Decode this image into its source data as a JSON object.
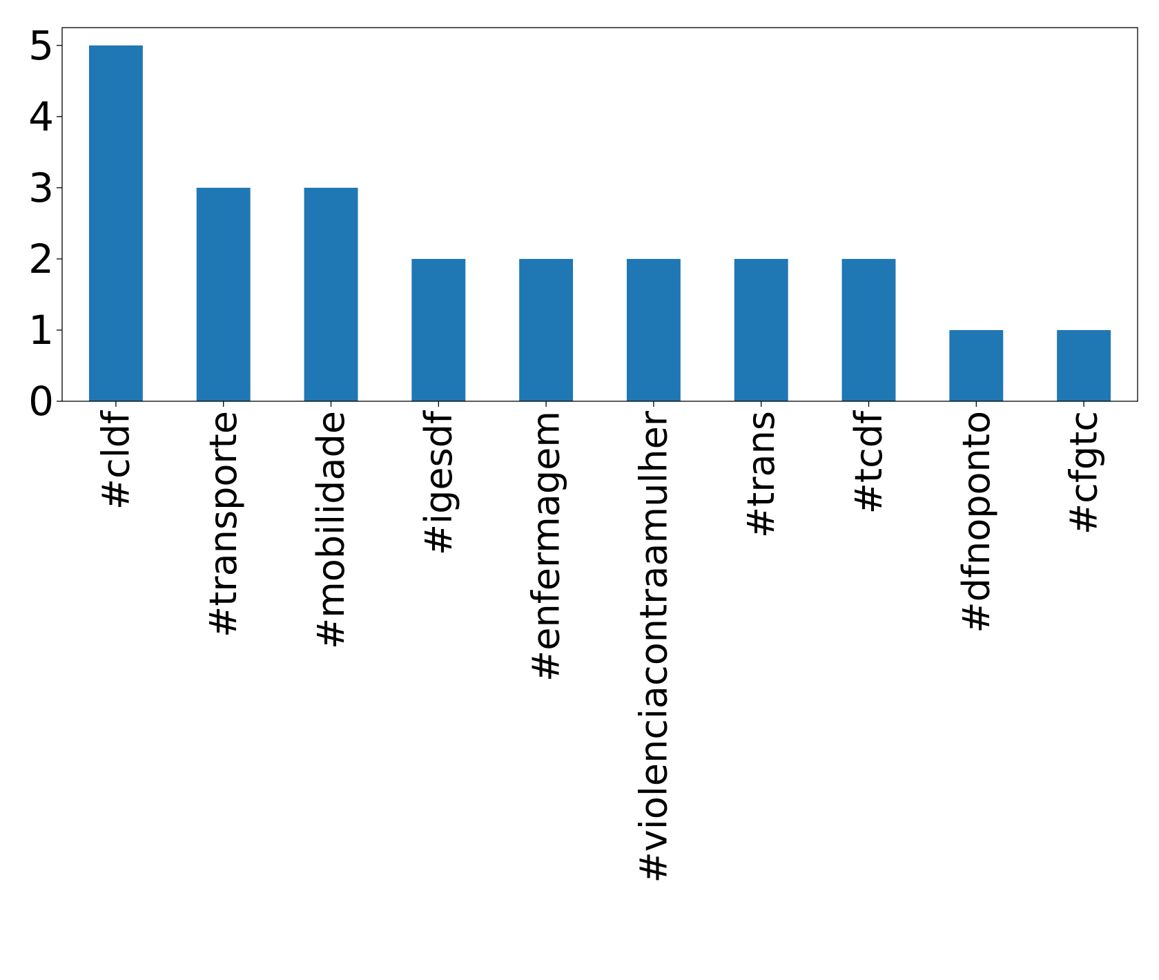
{
  "chart_data": {
    "type": "bar",
    "categories": [
      "#cldf",
      "#transporte",
      "#mobilidade",
      "#igesdf",
      "#enfermagem",
      "#violenciacontraamulher",
      "#trans",
      "#tcdf",
      "#dfnoponto",
      "#cfgtc"
    ],
    "values": [
      5,
      3,
      3,
      2,
      2,
      2,
      2,
      2,
      1,
      1
    ],
    "ylim": [
      0,
      5.25
    ],
    "yticks": [
      0,
      1,
      2,
      3,
      4,
      5
    ],
    "title": "",
    "xlabel": "",
    "ylabel": "",
    "grid": false,
    "bar_color": "#1f77b4"
  }
}
